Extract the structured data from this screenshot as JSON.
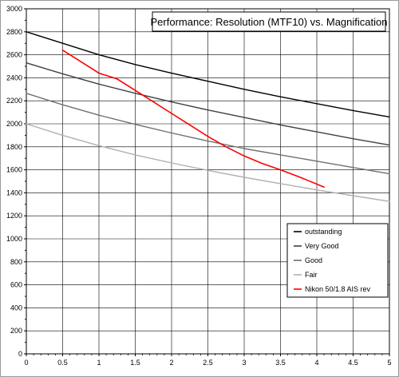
{
  "chart_data": {
    "type": "line",
    "title": "Performance: Resolution (MTF10) vs. Magnification",
    "xlabel": "",
    "ylabel": "",
    "xlim": [
      0,
      5
    ],
    "ylim": [
      0,
      3000
    ],
    "x_ticks": [
      "0",
      "0.5",
      "1",
      "1.5",
      "2",
      "2.5",
      "3",
      "3.5",
      "4",
      "4.5",
      "5"
    ],
    "y_ticks": [
      "0",
      "200",
      "400",
      "600",
      "800",
      "1000",
      "1200",
      "1400",
      "1600",
      "1800",
      "2000",
      "2200",
      "2400",
      "2600",
      "2800",
      "3000"
    ],
    "grid": true,
    "legend_position": "bottom-right",
    "series": [
      {
        "name": "outstanding",
        "color": "#000000",
        "x": [
          0,
          0.5,
          1,
          1.5,
          2,
          2.5,
          3,
          3.5,
          4,
          4.5,
          5
        ],
        "y": [
          2800,
          2700,
          2600,
          2515,
          2440,
          2370,
          2300,
          2235,
          2175,
          2115,
          2060
        ]
      },
      {
        "name": "Very Good",
        "color": "#404040",
        "x": [
          0,
          0.5,
          1,
          1.5,
          2,
          2.5,
          3,
          3.5,
          4,
          4.5,
          5
        ],
        "y": [
          2530,
          2435,
          2345,
          2265,
          2190,
          2120,
          2055,
          1990,
          1930,
          1870,
          1815
        ]
      },
      {
        "name": "Good",
        "color": "#707070",
        "x": [
          0,
          0.5,
          1,
          1.5,
          2,
          2.5,
          3,
          3.5,
          4,
          4.5,
          5
        ],
        "y": [
          2265,
          2165,
          2075,
          1995,
          1920,
          1850,
          1785,
          1730,
          1675,
          1620,
          1565
        ]
      },
      {
        "name": "Fair",
        "color": "#b0b0b0",
        "x": [
          0,
          0.5,
          1,
          1.5,
          2,
          2.5,
          3,
          3.5,
          4,
          4.5,
          5
        ],
        "y": [
          2000,
          1900,
          1810,
          1730,
          1660,
          1595,
          1535,
          1480,
          1425,
          1375,
          1325
        ]
      },
      {
        "name": "Nikon 50/1.8 AIS rev",
        "color": "#ff0000",
        "x": [
          0.5,
          0.75,
          1.0,
          1.25,
          1.5,
          1.75,
          2.0,
          2.25,
          2.5,
          2.75,
          3.0,
          3.25,
          3.5,
          3.75,
          4.1
        ],
        "y": [
          2640,
          2540,
          2440,
          2390,
          2290,
          2190,
          2090,
          1990,
          1890,
          1800,
          1720,
          1655,
          1600,
          1540,
          1450
        ]
      }
    ]
  }
}
